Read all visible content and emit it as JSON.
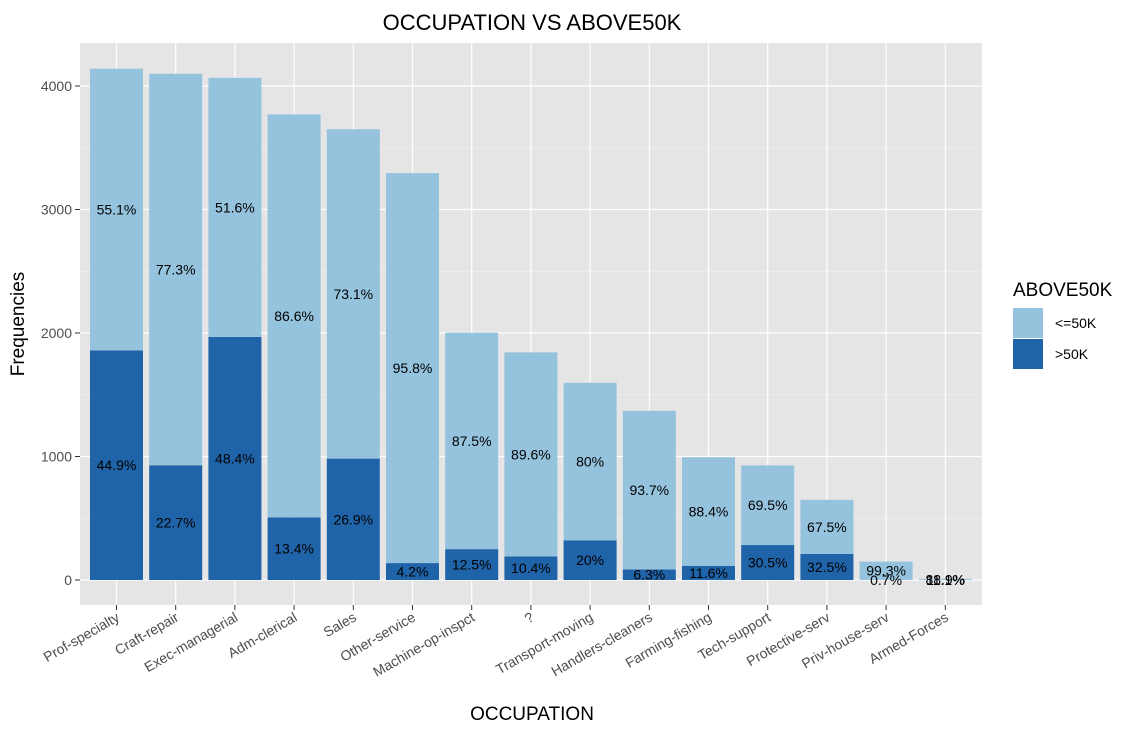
{
  "chart_data": {
    "type": "bar",
    "stacked": true,
    "title": "OCCUPATION VS ABOVE50K",
    "xlabel": "OCCUPATION",
    "ylabel": "Frequencies",
    "ylim": [
      0,
      4300
    ],
    "yticks": [
      0,
      1000,
      2000,
      3000,
      4000
    ],
    "grid": true,
    "legend_position": "right",
    "legend_title": "ABOVE50K",
    "categories": [
      "Prof-specialty",
      "Craft-repair",
      "Exec-managerial",
      "Adm-clerical",
      "Sales",
      "Other-service",
      "Machine-op-inspct",
      "?",
      "Transport-moving",
      "Handlers-cleaners",
      "Farming-fishing",
      "Tech-support",
      "Protective-serv",
      "Priv-house-serv",
      "Armed-Forces"
    ],
    "series": [
      {
        "name": "<=50K",
        "color": "#95c3dd",
        "values": [
          2281,
          3170,
          2098,
          3263,
          2667,
          3158,
          1752,
          1652,
          1277,
          1284,
          879,
          645,
          438,
          148,
          8
        ],
        "labels": [
          "55.1%",
          "77.3%",
          "51.6%",
          "86.6%",
          "73.1%",
          "95.8%",
          "87.5%",
          "89.6%",
          "80%",
          "93.7%",
          "88.4%",
          "69.5%",
          "67.5%",
          "99.3%",
          "88.9%"
        ]
      },
      {
        "name": ">50K",
        "color": "#1f63a8",
        "values": [
          1859,
          929,
          1968,
          507,
          983,
          137,
          250,
          191,
          320,
          86,
          115,
          283,
          211,
          1,
          1
        ],
        "labels": [
          "44.9%",
          "22.7%",
          "48.4%",
          "13.4%",
          "26.9%",
          "4.2%",
          "12.5%",
          "10.4%",
          "20%",
          "6.3%",
          "11.6%",
          "30.5%",
          "32.5%",
          "0.7%",
          "11.1%"
        ]
      }
    ]
  }
}
